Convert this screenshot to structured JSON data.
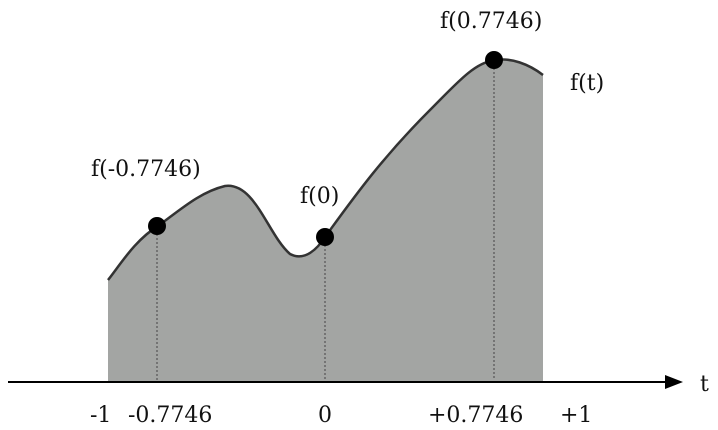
{
  "colors": {
    "fill": "#a3a5a3",
    "curve": "#333333",
    "axis": "#000000",
    "guide": "#444444",
    "point": "#000000"
  },
  "labels": {
    "curve": "f(t)",
    "axis": "t",
    "f_neg": "f(-0.7746)",
    "f_zero": "f(0)",
    "f_pos": "f(0.7746)"
  },
  "ticks": [
    "-1",
    "-0.7746",
    "0",
    "+0.7746",
    "+1"
  ]
}
